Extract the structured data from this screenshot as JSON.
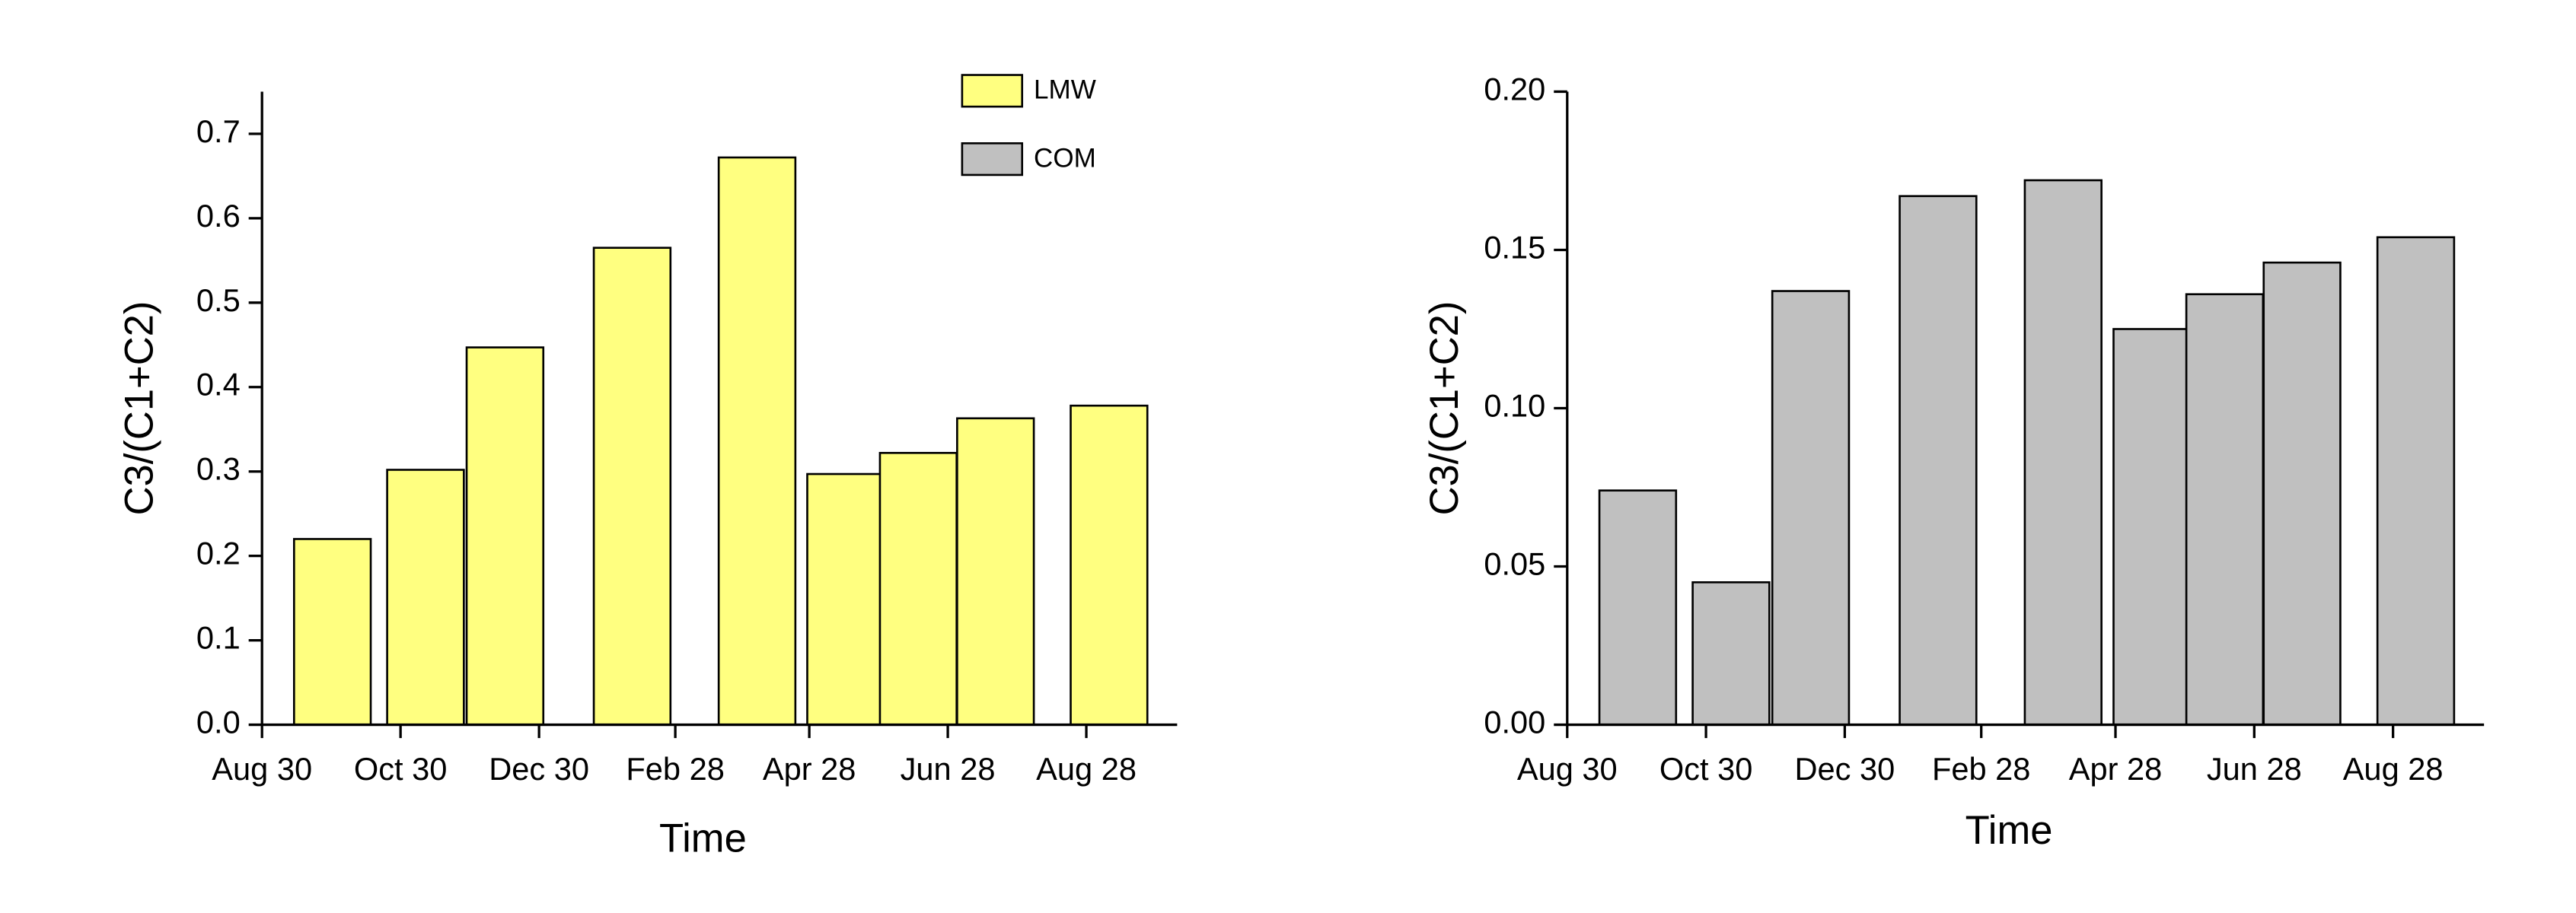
{
  "chart_data": [
    {
      "type": "bar",
      "x": [
        31,
        72,
        107,
        163,
        218,
        257,
        289,
        323,
        373
      ],
      "series": [
        {
          "name": "LMW",
          "color": "#ffff80",
          "values": [
            0.22,
            0.302,
            0.447,
            0.565,
            0.672,
            0.297,
            0.322,
            0.363,
            0.378
          ]
        }
      ],
      "xlabel": "Time",
      "ylabel": "C3/(C1+C2)",
      "xlim": [
        0,
        403
      ],
      "xticks": [
        {
          "value": 0,
          "label": "Aug 30"
        },
        {
          "value": 61,
          "label": "Oct 30"
        },
        {
          "value": 122,
          "label": "Dec 30"
        },
        {
          "value": 182,
          "label": "Feb 28"
        },
        {
          "value": 241,
          "label": "Apr 28"
        },
        {
          "value": 302,
          "label": "Jun 28"
        },
        {
          "value": 363,
          "label": "Aug 28"
        }
      ],
      "ylim": [
        0,
        0.75
      ],
      "yticks": [
        {
          "value": 0,
          "label": "0.0"
        },
        0.1,
        0.2,
        0.3,
        0.4,
        0.5,
        0.6,
        0.7
      ],
      "legend": "upper right"
    },
    {
      "type": "bar",
      "x": [
        31,
        72,
        107,
        163,
        218,
        257,
        289,
        323,
        373
      ],
      "series": [
        {
          "name": "COM",
          "color": "#c0c0c0",
          "values": [
            0.074,
            0.045,
            0.137,
            0.167,
            0.172,
            0.125,
            0.136,
            0.146,
            0.154
          ]
        }
      ],
      "xlabel": "Time",
      "ylabel": "C3/(C1+C2)",
      "xlim": [
        0,
        403
      ],
      "xticks": [
        {
          "value": 0,
          "label": "Aug 30"
        },
        {
          "value": 61,
          "label": "Oct 30"
        },
        {
          "value": 122,
          "label": "Dec 30"
        },
        {
          "value": 182,
          "label": "Feb 28"
        },
        {
          "value": 241,
          "label": "Apr 28"
        },
        {
          "value": 302,
          "label": "Jun 28"
        },
        {
          "value": 363,
          "label": "Aug 28"
        }
      ],
      "ylim": [
        0,
        0.2
      ],
      "yticks": [
        {
          "value": 0,
          "label": "0.00"
        },
        {
          "value": 0.05,
          "label": "0.05"
        },
        {
          "value": 0.1,
          "label": "0.10"
        },
        {
          "value": 0.15,
          "label": "0.15"
        },
        {
          "value": 0.2,
          "label": "0.20"
        }
      ]
    }
  ]
}
